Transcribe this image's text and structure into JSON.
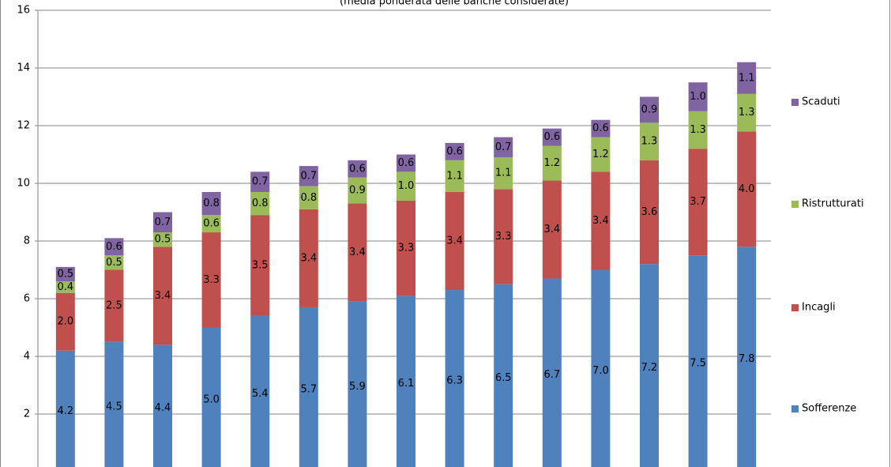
{
  "chart_data": {
    "type": "stacked_bar",
    "subtitle": "(media ponderata delle banche considerate)",
    "ylim": [
      0,
      16
    ],
    "yticks": [
      2,
      4,
      6,
      8,
      10,
      12,
      14,
      16
    ],
    "grid": true,
    "series": [
      {
        "name": "Sofferenze",
        "color": "#4f81bd",
        "values": [
          4.2,
          4.5,
          4.4,
          5.0,
          5.4,
          5.7,
          5.9,
          6.1,
          6.3,
          6.5,
          6.7,
          7.0,
          7.2,
          7.5,
          7.8
        ],
        "value_labels": [
          "4.2",
          "4.5",
          "4.4",
          "5.0",
          "5.4",
          "5.7",
          "5.9",
          "6.1",
          "6.3",
          "6.5",
          "6.7",
          "7.0",
          "7.2",
          "7.5",
          "7.8"
        ]
      },
      {
        "name": "Incagli",
        "color": "#c0504d",
        "values": [
          2.0,
          2.5,
          3.4,
          3.3,
          3.5,
          3.4,
          3.4,
          3.3,
          3.4,
          3.3,
          3.4,
          3.4,
          3.6,
          3.7,
          4.0
        ],
        "value_labels": [
          "2.0",
          "2.5",
          "3.4",
          "3.3",
          "3.5",
          "3.4",
          "3.4",
          "3.3",
          "3.4",
          "3.3",
          "3.4",
          "3.4",
          "3.6",
          "3.7",
          "4.0"
        ]
      },
      {
        "name": "Ristrutturati",
        "color": "#9bbb59",
        "values": [
          0.4,
          0.5,
          0.5,
          0.6,
          0.8,
          0.8,
          0.9,
          1.0,
          1.1,
          1.1,
          1.2,
          1.2,
          1.3,
          1.3,
          1.3
        ],
        "value_labels": [
          "0.4",
          "0.5",
          "0.5",
          "0.6",
          "0.8",
          "0.8",
          "0.9",
          "1.0",
          "1.1",
          "1.1",
          "1.2",
          "1.2",
          "1.3",
          "1.3",
          "1.3"
        ]
      },
      {
        "name": "Scaduti",
        "color": "#8064a2",
        "values": [
          0.5,
          0.6,
          0.7,
          0.8,
          0.7,
          0.7,
          0.6,
          0.6,
          0.6,
          0.7,
          0.6,
          0.6,
          0.9,
          1.0,
          1.1
        ],
        "value_labels": [
          "0.5",
          "0.6",
          "0.7",
          "0.8",
          "0.7",
          "0.7",
          "0.6",
          "0.6",
          "0.6",
          "0.7",
          "0.6",
          "0.6",
          "0.9",
          "1.0",
          "1.1"
        ]
      }
    ]
  }
}
